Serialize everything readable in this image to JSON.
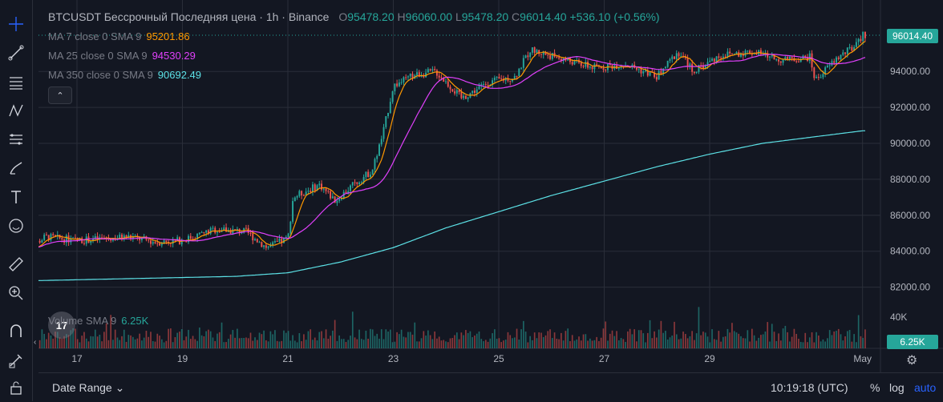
{
  "legend": {
    "title": "BTCUSDT Бессрочный Последняя цена · 1h · Binance",
    "o_label": "O",
    "o_value": "95478.20",
    "h_label": "H",
    "h_value": "96060.00",
    "l_label": "L",
    "l_value": "95478.20",
    "c_label": "C",
    "c_value": "96014.40",
    "change": "+536.10 (+0.56%)"
  },
  "indicators": [
    {
      "label": "MA 7 close 0 SMA 9",
      "value": "95201.86",
      "color": "#ff9800"
    },
    {
      "label": "MA 25 close 0 SMA 9",
      "value": "94530.29",
      "color": "#e040fb"
    },
    {
      "label": "MA 350 close 0 SMA 9",
      "value": "90692.49",
      "color": "#5ce1e6"
    }
  ],
  "collapse_button": "⌃",
  "volume": {
    "label": "Volume SMA 9",
    "value": "6.25K",
    "axis_top": "40K",
    "tag": "6.25K"
  },
  "last_price_tag": "96014.40",
  "bottom": {
    "range_label": "Date Range ⌄",
    "clock": "10:19:18 (UTC)",
    "percent": "%",
    "log": "log",
    "auto": "auto"
  },
  "logo_text": "17",
  "colors": {
    "up": "#26a69a",
    "down": "#ef5350",
    "bg": "#131722",
    "grid": "#2a2e39"
  },
  "toolbar_icons": [
    "crosshair-icon",
    "trend-line-icon",
    "fib-icon",
    "pattern-icon",
    "projection-icon",
    "brush-icon",
    "text-icon",
    "emoji-icon",
    "ruler-icon",
    "zoom-in-icon",
    "magnet-icon",
    "lock-drawing-icon",
    "lock-icon"
  ],
  "chart_data": {
    "type": "candlestick",
    "title": "BTCUSDT Бессрочный Последняя цена · 1h · Binance",
    "y_ticks": [
      "82000.00",
      "84000.00",
      "86000.00",
      "88000.00",
      "90000.00",
      "92000.00",
      "94000.00"
    ],
    "x_ticks": [
      "17",
      "19",
      "21",
      "23",
      "25",
      "27",
      "29",
      "May"
    ],
    "ylim": [
      81000,
      97000
    ],
    "price_anchors": [
      {
        "day": 16.0,
        "price": 84000
      },
      {
        "day": 16.4,
        "price": 84800
      },
      {
        "day": 17.0,
        "price": 84600
      },
      {
        "day": 18.0,
        "price": 84800
      },
      {
        "day": 18.5,
        "price": 84500
      },
      {
        "day": 19.0,
        "price": 84600
      },
      {
        "day": 19.6,
        "price": 85200
      },
      {
        "day": 20.2,
        "price": 85100
      },
      {
        "day": 20.6,
        "price": 84200
      },
      {
        "day": 21.0,
        "price": 84700
      },
      {
        "day": 21.1,
        "price": 87000
      },
      {
        "day": 21.6,
        "price": 87700
      },
      {
        "day": 21.9,
        "price": 86800
      },
      {
        "day": 22.2,
        "price": 87600
      },
      {
        "day": 22.6,
        "price": 88500
      },
      {
        "day": 22.8,
        "price": 90500
      },
      {
        "day": 23.0,
        "price": 93200
      },
      {
        "day": 23.4,
        "price": 93800
      },
      {
        "day": 23.8,
        "price": 94000
      },
      {
        "day": 24.3,
        "price": 92500
      },
      {
        "day": 24.8,
        "price": 93400
      },
      {
        "day": 25.3,
        "price": 93700
      },
      {
        "day": 25.6,
        "price": 95200
      },
      {
        "day": 26.2,
        "price": 94700
      },
      {
        "day": 26.8,
        "price": 94200
      },
      {
        "day": 27.4,
        "price": 94400
      },
      {
        "day": 28.0,
        "price": 93700
      },
      {
        "day": 28.4,
        "price": 95100
      },
      {
        "day": 28.7,
        "price": 94000
      },
      {
        "day": 29.2,
        "price": 94900
      },
      {
        "day": 29.8,
        "price": 95100
      },
      {
        "day": 30.4,
        "price": 94600
      },
      {
        "day": 30.9,
        "price": 94800
      },
      {
        "day": 31.0,
        "price": 93500
      },
      {
        "day": 31.4,
        "price": 94700
      },
      {
        "day": 31.8,
        "price": 95500
      },
      {
        "day": 31.9,
        "price": 96014
      }
    ],
    "ma350_anchors": [
      {
        "day": 16.0,
        "price": 82350
      },
      {
        "day": 20.0,
        "price": 82600
      },
      {
        "day": 21.0,
        "price": 82800
      },
      {
        "day": 22.0,
        "price": 83400
      },
      {
        "day": 23.0,
        "price": 84200
      },
      {
        "day": 24.0,
        "price": 85300
      },
      {
        "day": 25.0,
        "price": 86200
      },
      {
        "day": 26.0,
        "price": 87100
      },
      {
        "day": 27.0,
        "price": 87900
      },
      {
        "day": 28.0,
        "price": 88700
      },
      {
        "day": 29.0,
        "price": 89400
      },
      {
        "day": 30.0,
        "price": 90000
      },
      {
        "day": 31.9,
        "price": 90700
      }
    ]
  }
}
